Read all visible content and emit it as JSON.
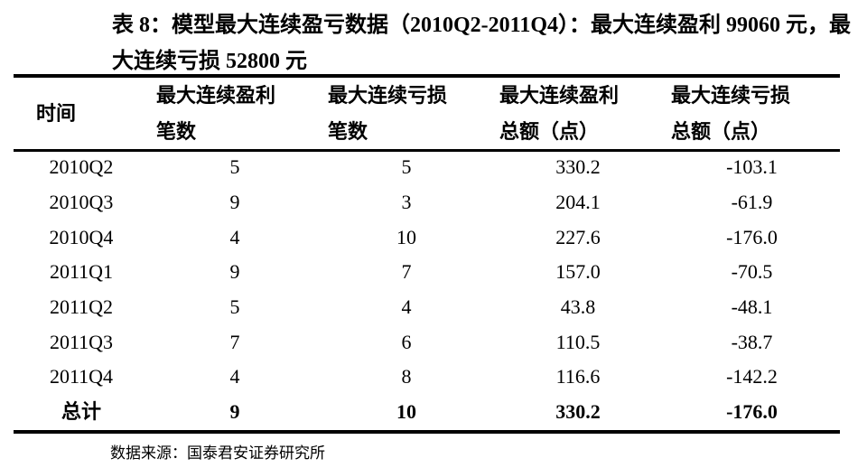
{
  "title": "表 8：模型最大连续盈亏数据（2010Q2-2011Q4）：最大连续盈利 99060 元，最大连续亏损 52800 元",
  "table": {
    "headers": [
      {
        "line1": "时间",
        "line2": ""
      },
      {
        "line1": "最大连续盈利",
        "line2": "笔数"
      },
      {
        "line1": "最大连续亏损",
        "line2": "笔数"
      },
      {
        "line1": "最大连续盈利",
        "line2": "总额（点）"
      },
      {
        "line1": "最大连续亏损",
        "line2": "总额（点）"
      }
    ],
    "rows": [
      [
        "2010Q2",
        "5",
        "5",
        "330.2",
        "-103.1"
      ],
      [
        "2010Q3",
        "9",
        "3",
        "204.1",
        "-61.9"
      ],
      [
        "2010Q4",
        "4",
        "10",
        "227.6",
        "-176.0"
      ],
      [
        "2011Q1",
        "9",
        "7",
        "157.0",
        "-70.5"
      ],
      [
        "2011Q2",
        "5",
        "4",
        "43.8",
        "-48.1"
      ],
      [
        "2011Q3",
        "7",
        "6",
        "110.5",
        "-38.7"
      ],
      [
        "2011Q4",
        "4",
        "8",
        "116.6",
        "-142.2"
      ]
    ],
    "total": [
      "总计",
      "9",
      "10",
      "330.2",
      "-176.0"
    ]
  },
  "source": "数据来源：国泰君安证券研究所"
}
